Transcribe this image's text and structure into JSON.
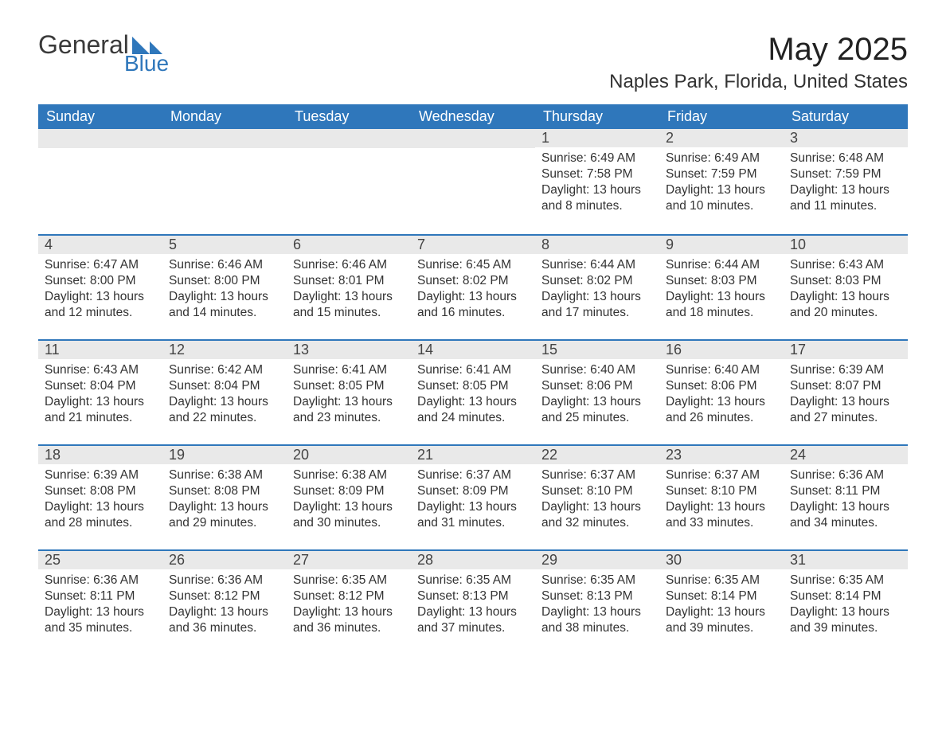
{
  "brand": {
    "general": "General",
    "blue": "Blue"
  },
  "header": {
    "month_title": "May 2025",
    "location": "Naples Park, Florida, United States"
  },
  "style": {
    "accent_color": "#2f77bb",
    "header_bg": "#2f77bb",
    "daynum_bg": "#e9e9e9",
    "body_bg": "#ffffff",
    "text_color": "#333333",
    "title_fontsize": 40,
    "location_fontsize": 24,
    "dayhead_fontsize": 18,
    "details_fontsize": 15.5,
    "columns": 7,
    "type": "calendar-table"
  },
  "day_names": [
    "Sunday",
    "Monday",
    "Tuesday",
    "Wednesday",
    "Thursday",
    "Friday",
    "Saturday"
  ],
  "days": [
    {
      "n": "",
      "sunrise": "",
      "sunset": "",
      "daylight": ""
    },
    {
      "n": "",
      "sunrise": "",
      "sunset": "",
      "daylight": ""
    },
    {
      "n": "",
      "sunrise": "",
      "sunset": "",
      "daylight": ""
    },
    {
      "n": "",
      "sunrise": "",
      "sunset": "",
      "daylight": ""
    },
    {
      "n": "1",
      "sunrise": "Sunrise: 6:49 AM",
      "sunset": "Sunset: 7:58 PM",
      "daylight": "Daylight: 13 hours and 8 minutes."
    },
    {
      "n": "2",
      "sunrise": "Sunrise: 6:49 AM",
      "sunset": "Sunset: 7:59 PM",
      "daylight": "Daylight: 13 hours and 10 minutes."
    },
    {
      "n": "3",
      "sunrise": "Sunrise: 6:48 AM",
      "sunset": "Sunset: 7:59 PM",
      "daylight": "Daylight: 13 hours and 11 minutes."
    },
    {
      "n": "4",
      "sunrise": "Sunrise: 6:47 AM",
      "sunset": "Sunset: 8:00 PM",
      "daylight": "Daylight: 13 hours and 12 minutes."
    },
    {
      "n": "5",
      "sunrise": "Sunrise: 6:46 AM",
      "sunset": "Sunset: 8:00 PM",
      "daylight": "Daylight: 13 hours and 14 minutes."
    },
    {
      "n": "6",
      "sunrise": "Sunrise: 6:46 AM",
      "sunset": "Sunset: 8:01 PM",
      "daylight": "Daylight: 13 hours and 15 minutes."
    },
    {
      "n": "7",
      "sunrise": "Sunrise: 6:45 AM",
      "sunset": "Sunset: 8:02 PM",
      "daylight": "Daylight: 13 hours and 16 minutes."
    },
    {
      "n": "8",
      "sunrise": "Sunrise: 6:44 AM",
      "sunset": "Sunset: 8:02 PM",
      "daylight": "Daylight: 13 hours and 17 minutes."
    },
    {
      "n": "9",
      "sunrise": "Sunrise: 6:44 AM",
      "sunset": "Sunset: 8:03 PM",
      "daylight": "Daylight: 13 hours and 18 minutes."
    },
    {
      "n": "10",
      "sunrise": "Sunrise: 6:43 AM",
      "sunset": "Sunset: 8:03 PM",
      "daylight": "Daylight: 13 hours and 20 minutes."
    },
    {
      "n": "11",
      "sunrise": "Sunrise: 6:43 AM",
      "sunset": "Sunset: 8:04 PM",
      "daylight": "Daylight: 13 hours and 21 minutes."
    },
    {
      "n": "12",
      "sunrise": "Sunrise: 6:42 AM",
      "sunset": "Sunset: 8:04 PM",
      "daylight": "Daylight: 13 hours and 22 minutes."
    },
    {
      "n": "13",
      "sunrise": "Sunrise: 6:41 AM",
      "sunset": "Sunset: 8:05 PM",
      "daylight": "Daylight: 13 hours and 23 minutes."
    },
    {
      "n": "14",
      "sunrise": "Sunrise: 6:41 AM",
      "sunset": "Sunset: 8:05 PM",
      "daylight": "Daylight: 13 hours and 24 minutes."
    },
    {
      "n": "15",
      "sunrise": "Sunrise: 6:40 AM",
      "sunset": "Sunset: 8:06 PM",
      "daylight": "Daylight: 13 hours and 25 minutes."
    },
    {
      "n": "16",
      "sunrise": "Sunrise: 6:40 AM",
      "sunset": "Sunset: 8:06 PM",
      "daylight": "Daylight: 13 hours and 26 minutes."
    },
    {
      "n": "17",
      "sunrise": "Sunrise: 6:39 AM",
      "sunset": "Sunset: 8:07 PM",
      "daylight": "Daylight: 13 hours and 27 minutes."
    },
    {
      "n": "18",
      "sunrise": "Sunrise: 6:39 AM",
      "sunset": "Sunset: 8:08 PM",
      "daylight": "Daylight: 13 hours and 28 minutes."
    },
    {
      "n": "19",
      "sunrise": "Sunrise: 6:38 AM",
      "sunset": "Sunset: 8:08 PM",
      "daylight": "Daylight: 13 hours and 29 minutes."
    },
    {
      "n": "20",
      "sunrise": "Sunrise: 6:38 AM",
      "sunset": "Sunset: 8:09 PM",
      "daylight": "Daylight: 13 hours and 30 minutes."
    },
    {
      "n": "21",
      "sunrise": "Sunrise: 6:37 AM",
      "sunset": "Sunset: 8:09 PM",
      "daylight": "Daylight: 13 hours and 31 minutes."
    },
    {
      "n": "22",
      "sunrise": "Sunrise: 6:37 AM",
      "sunset": "Sunset: 8:10 PM",
      "daylight": "Daylight: 13 hours and 32 minutes."
    },
    {
      "n": "23",
      "sunrise": "Sunrise: 6:37 AM",
      "sunset": "Sunset: 8:10 PM",
      "daylight": "Daylight: 13 hours and 33 minutes."
    },
    {
      "n": "24",
      "sunrise": "Sunrise: 6:36 AM",
      "sunset": "Sunset: 8:11 PM",
      "daylight": "Daylight: 13 hours and 34 minutes."
    },
    {
      "n": "25",
      "sunrise": "Sunrise: 6:36 AM",
      "sunset": "Sunset: 8:11 PM",
      "daylight": "Daylight: 13 hours and 35 minutes."
    },
    {
      "n": "26",
      "sunrise": "Sunrise: 6:36 AM",
      "sunset": "Sunset: 8:12 PM",
      "daylight": "Daylight: 13 hours and 36 minutes."
    },
    {
      "n": "27",
      "sunrise": "Sunrise: 6:35 AM",
      "sunset": "Sunset: 8:12 PM",
      "daylight": "Daylight: 13 hours and 36 minutes."
    },
    {
      "n": "28",
      "sunrise": "Sunrise: 6:35 AM",
      "sunset": "Sunset: 8:13 PM",
      "daylight": "Daylight: 13 hours and 37 minutes."
    },
    {
      "n": "29",
      "sunrise": "Sunrise: 6:35 AM",
      "sunset": "Sunset: 8:13 PM",
      "daylight": "Daylight: 13 hours and 38 minutes."
    },
    {
      "n": "30",
      "sunrise": "Sunrise: 6:35 AM",
      "sunset": "Sunset: 8:14 PM",
      "daylight": "Daylight: 13 hours and 39 minutes."
    },
    {
      "n": "31",
      "sunrise": "Sunrise: 6:35 AM",
      "sunset": "Sunset: 8:14 PM",
      "daylight": "Daylight: 13 hours and 39 minutes."
    }
  ]
}
